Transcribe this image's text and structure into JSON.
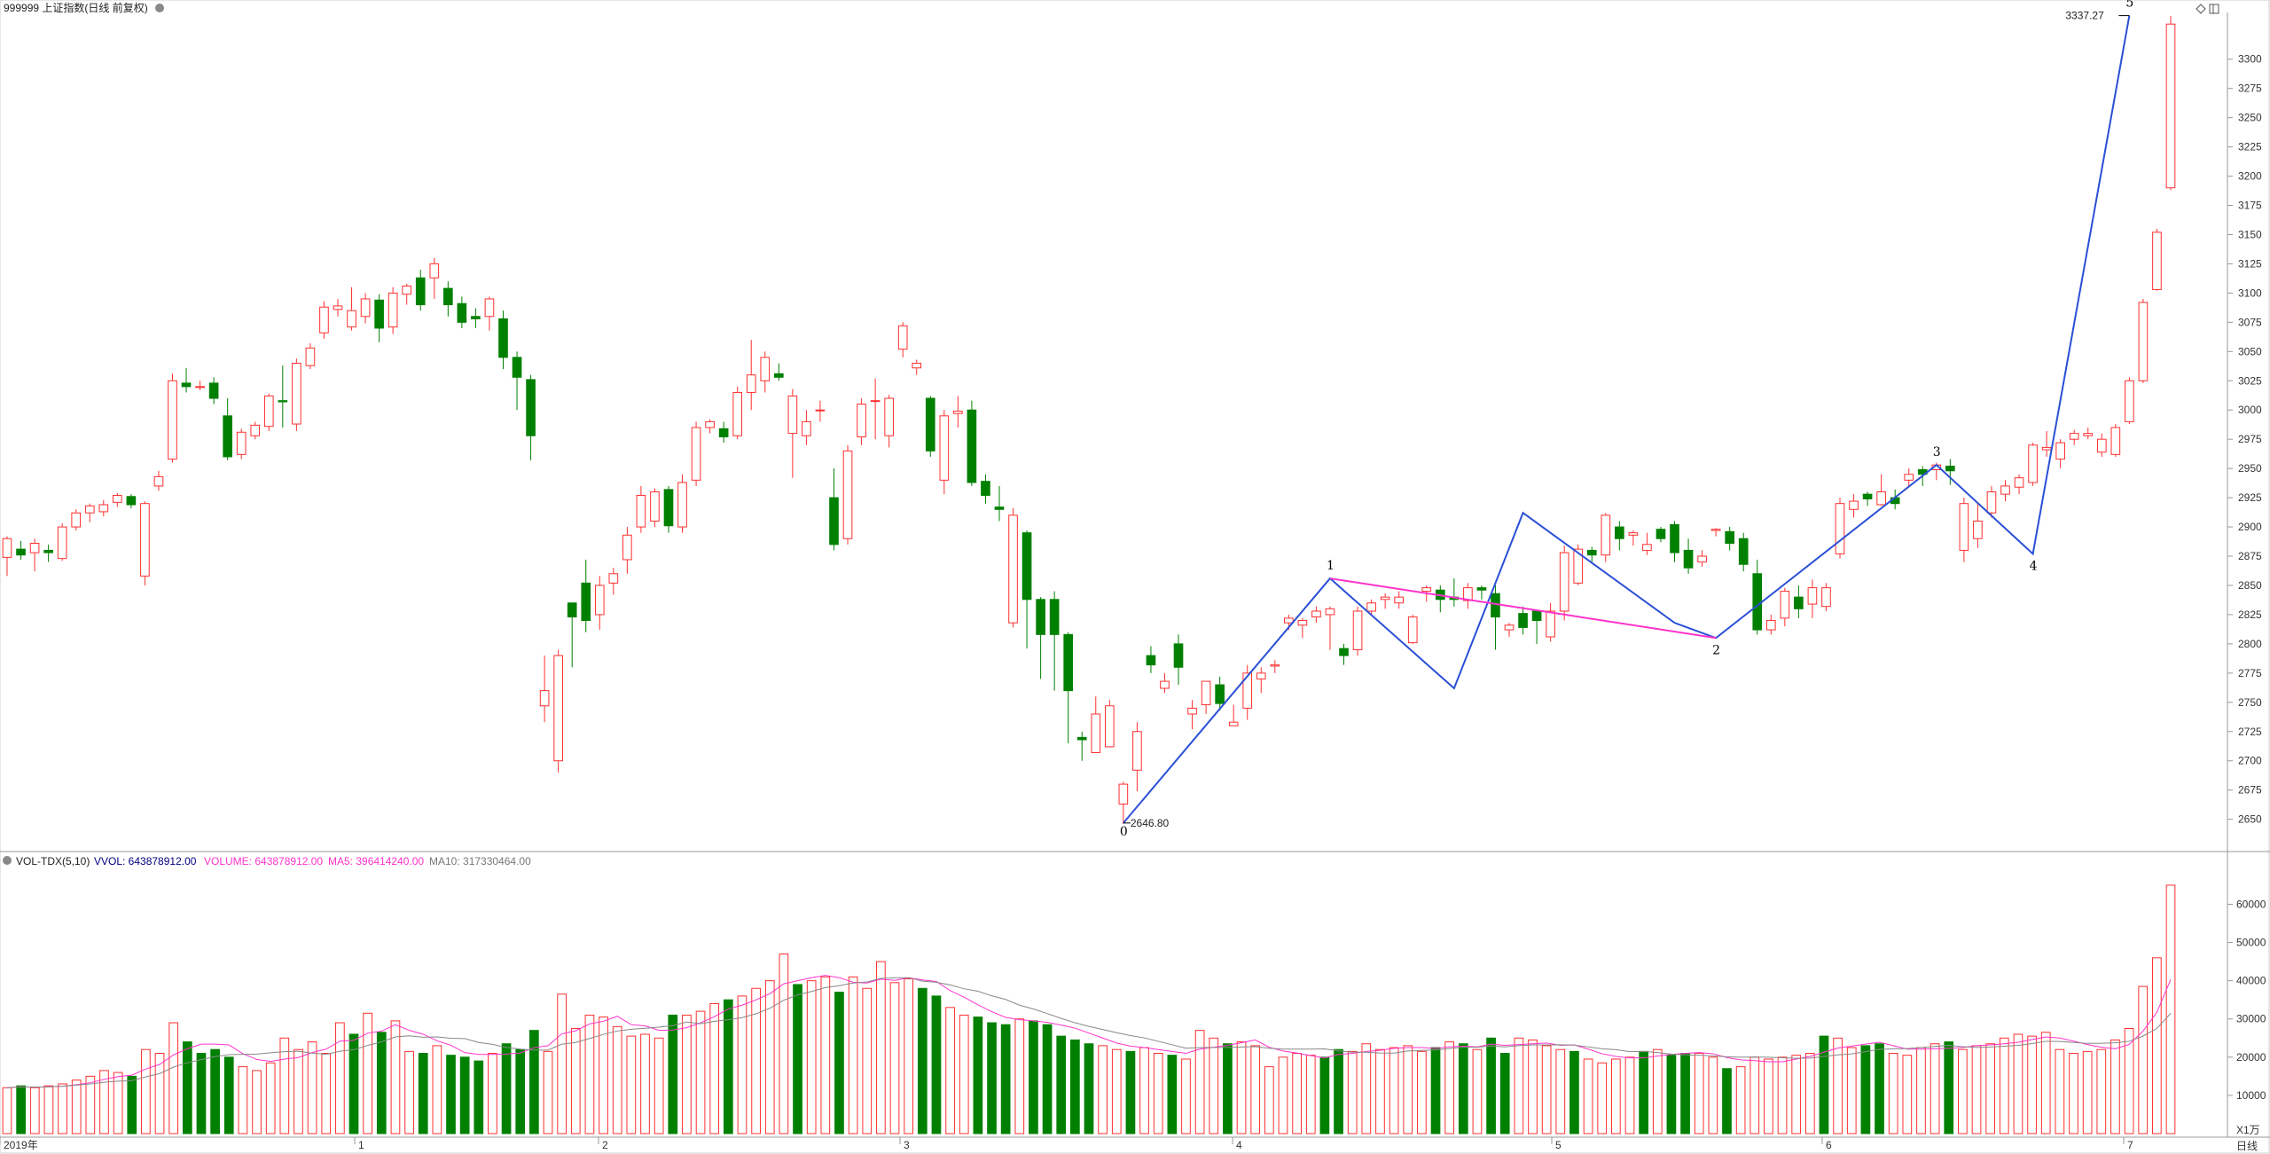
{
  "header": {
    "code_title": "999999 上证指数(日线 前复权)",
    "corner_icons": [
      "diamond-icon",
      "window-icon"
    ]
  },
  "price_axis": {
    "ticks": [
      "3300",
      "3275",
      "3250",
      "3225",
      "3200",
      "3175",
      "3150",
      "3125",
      "3100",
      "3075",
      "3050",
      "3025",
      "3000",
      "2975",
      "2950",
      "2925",
      "2900",
      "2875",
      "2850",
      "2825",
      "2800",
      "2775",
      "2750",
      "2725",
      "2700",
      "2675",
      "2650"
    ]
  },
  "volume_header": {
    "indicator": "VOL-TDX(5,10)",
    "vvol": "VVOL: 643878912.00",
    "volume": "VOLUME: 643878912.00",
    "ma5": "MA5: 396414240.00",
    "ma10": "MA10: 317330464.00"
  },
  "volume_axis": {
    "ticks": [
      "60000",
      "50000",
      "40000",
      "30000",
      "20000",
      "10000"
    ],
    "unit": "X1万"
  },
  "time_axis": {
    "labels": [
      "2019年",
      "1",
      "2",
      "3",
      "4",
      "5",
      "6",
      "7"
    ],
    "period": "日线"
  },
  "annotations": {
    "low_value": "2646.80",
    "high_value": "3337.27",
    "wave_labels": [
      "0",
      "1",
      "2",
      "3",
      "4",
      "5"
    ]
  },
  "colors": {
    "up": "#ff3030",
    "down": "#008000",
    "wave_line": "#2a4fd6",
    "trend_line": "#ff33cc",
    "ma5": "#ff33cc",
    "ma10": "#777777",
    "volume_text": "#ff33cc",
    "vvol_text": "#000080"
  },
  "chart_data": {
    "type": "candlestick",
    "x": [
      "2019-01",
      "2019-02",
      "2019-03",
      "2019-04",
      "2019-05",
      "2019-06",
      "2019-07"
    ],
    "candles": [
      [
        2874,
        2890,
        2858,
        2892
      ],
      [
        2881,
        2876,
        2872,
        2888
      ],
      [
        2878,
        2886,
        2862,
        2890
      ],
      [
        2880,
        2878,
        2870,
        2885
      ],
      [
        2873,
        2900,
        2871,
        2903
      ],
      [
        2900,
        2912,
        2897,
        2915
      ],
      [
        2912,
        2918,
        2904,
        2920
      ],
      [
        2913,
        2919,
        2909,
        2923
      ],
      [
        2921,
        2927,
        2917,
        2929
      ],
      [
        2926,
        2919,
        2916,
        2928
      ],
      [
        2858,
        2920,
        2850,
        2922
      ],
      [
        2935,
        2943,
        2931,
        2948
      ],
      [
        2958,
        3025,
        2955,
        3031
      ],
      [
        3023,
        3020,
        3015,
        3036
      ],
      [
        3020,
        3020,
        3017,
        3025
      ],
      [
        3023,
        3010,
        3005,
        3028
      ],
      [
        2995,
        2960,
        2957,
        3010
      ],
      [
        2962,
        2981,
        2958,
        2984
      ],
      [
        2978,
        2987,
        2975,
        2990
      ],
      [
        2986,
        3012,
        2982,
        3014
      ],
      [
        3008,
        3007,
        2985,
        3038
      ],
      [
        2988,
        3040,
        2982,
        3044
      ],
      [
        3038,
        3053,
        3035,
        3057
      ],
      [
        3066,
        3088,
        3061,
        3093
      ],
      [
        3086,
        3089,
        3080,
        3095
      ],
      [
        3071,
        3085,
        3068,
        3105
      ],
      [
        3080,
        3095,
        3074,
        3100
      ],
      [
        3094,
        3070,
        3058,
        3099
      ],
      [
        3071,
        3100,
        3065,
        3105
      ],
      [
        3099,
        3106,
        3090,
        3108
      ],
      [
        3113,
        3090,
        3085,
        3120
      ],
      [
        3113,
        3125,
        3095,
        3130
      ],
      [
        3104,
        3090,
        3080,
        3110
      ],
      [
        3091,
        3075,
        3070,
        3097
      ],
      [
        3080,
        3078,
        3070,
        3087
      ],
      [
        3080,
        3095,
        3068,
        3097
      ],
      [
        3078,
        3045,
        3035,
        3085
      ],
      [
        3045,
        3028,
        3000,
        3050
      ],
      [
        3026,
        2978,
        2957,
        3030
      ],
      [
        2747,
        2760,
        2733,
        2790
      ],
      [
        2700,
        2790,
        2690,
        2795
      ],
      [
        2835,
        2823,
        2780,
        2830
      ],
      [
        2852,
        2820,
        2810,
        2872
      ],
      [
        2825,
        2850,
        2812,
        2858
      ],
      [
        2852,
        2860,
        2842,
        2865
      ],
      [
        2872,
        2893,
        2860,
        2900
      ],
      [
        2900,
        2927,
        2895,
        2935
      ],
      [
        2905,
        2930,
        2900,
        2933
      ],
      [
        2932,
        2901,
        2895,
        2935
      ],
      [
        2900,
        2938,
        2895,
        2945
      ],
      [
        2940,
        2985,
        2935,
        2990
      ],
      [
        2985,
        2990,
        2980,
        2992
      ],
      [
        2984,
        2977,
        2972,
        2990
      ],
      [
        2978,
        3015,
        2975,
        3020
      ],
      [
        3015,
        3030,
        3000,
        3060
      ],
      [
        3025,
        3045,
        3015,
        3050
      ],
      [
        3031,
        3028,
        3025,
        3040
      ],
      [
        2980,
        3012,
        2942,
        3018
      ],
      [
        2978,
        2990,
        2970,
        3000
      ],
      [
        3000,
        3000,
        2990,
        3008
      ],
      [
        2925,
        2885,
        2880,
        2950
      ],
      [
        2890,
        2965,
        2885,
        2970
      ],
      [
        2977,
        3005,
        2970,
        3010
      ],
      [
        3008,
        3008,
        2975,
        3027
      ],
      [
        2978,
        3010,
        2968,
        3013
      ],
      [
        3052,
        3072,
        3045,
        3075
      ],
      [
        3036,
        3040,
        3030,
        3043
      ],
      [
        3010,
        2965,
        2960,
        3012
      ],
      [
        2940,
        2995,
        2928,
        3000
      ],
      [
        2997,
        2999,
        2985,
        3012
      ],
      [
        3000,
        2938,
        2935,
        3008
      ],
      [
        2939,
        2927,
        2920,
        2945
      ],
      [
        2917,
        2915,
        2905,
        2935
      ],
      [
        2818,
        2910,
        2814,
        2916
      ],
      [
        2895,
        2838,
        2796,
        2897
      ],
      [
        2838,
        2808,
        2770,
        2840
      ],
      [
        2838,
        2808,
        2760,
        2845
      ],
      [
        2808,
        2760,
        2715,
        2810
      ],
      [
        2720,
        2718,
        2700,
        2725
      ],
      [
        2707,
        2740,
        2708,
        2755
      ],
      [
        2712,
        2747,
        2715,
        2752
      ],
      [
        2663,
        2680,
        2646,
        2682
      ],
      [
        2692,
        2725,
        2674,
        2733
      ],
      [
        2790,
        2782,
        2775,
        2798
      ],
      [
        2762,
        2768,
        2758,
        2775
      ],
      [
        2800,
        2780,
        2765,
        2808
      ],
      [
        2740,
        2745,
        2727,
        2752
      ],
      [
        2748,
        2768,
        2740,
        2768
      ],
      [
        2765,
        2749,
        2743,
        2772
      ],
      [
        2730,
        2733,
        2732,
        2748
      ],
      [
        2745,
        2775,
        2735,
        2782
      ],
      [
        2770,
        2775,
        2758,
        2780
      ],
      [
        2781,
        2782,
        2775,
        2786
      ],
      [
        2818,
        2822,
        2812,
        2825
      ],
      [
        2816,
        2820,
        2805,
        2822
      ],
      [
        2823,
        2828,
        2818,
        2832
      ],
      [
        2825,
        2830,
        2795,
        2832
      ],
      [
        2796,
        2790,
        2782,
        2800
      ],
      [
        2795,
        2828,
        2790,
        2832
      ],
      [
        2828,
        2835,
        2825,
        2838
      ],
      [
        2838,
        2840,
        2830,
        2843
      ],
      [
        2835,
        2840,
        2830,
        2845
      ],
      [
        2801,
        2823,
        2800,
        2825
      ],
      [
        2845,
        2848,
        2836,
        2850
      ],
      [
        2846,
        2838,
        2827,
        2850
      ],
      [
        2840,
        2838,
        2832,
        2856
      ],
      [
        2837,
        2848,
        2830,
        2852
      ],
      [
        2848,
        2846,
        2838,
        2850
      ],
      [
        2843,
        2823,
        2795,
        2850
      ],
      [
        2812,
        2816,
        2806,
        2818
      ],
      [
        2826,
        2814,
        2808,
        2832
      ],
      [
        2828,
        2820,
        2800,
        2825
      ],
      [
        2806,
        2828,
        2802,
        2835
      ],
      [
        2828,
        2878,
        2820,
        2884
      ],
      [
        2852,
        2881,
        2850,
        2885
      ],
      [
        2880,
        2876,
        2870,
        2883
      ],
      [
        2876,
        2910,
        2870,
        2912
      ],
      [
        2900,
        2890,
        2880,
        2905
      ],
      [
        2893,
        2895,
        2884,
        2897
      ],
      [
        2880,
        2885,
        2876,
        2895
      ],
      [
        2898,
        2890,
        2887,
        2900
      ],
      [
        2902,
        2878,
        2870,
        2905
      ],
      [
        2880,
        2865,
        2860,
        2890
      ],
      [
        2870,
        2875,
        2866,
        2880
      ],
      [
        2897,
        2898,
        2892,
        2899
      ],
      [
        2896,
        2886,
        2880,
        2900
      ],
      [
        2890,
        2868,
        2862,
        2895
      ],
      [
        2860,
        2812,
        2808,
        2872
      ],
      [
        2812,
        2820,
        2808,
        2825
      ],
      [
        2822,
        2845,
        2815,
        2848
      ],
      [
        2840,
        2830,
        2822,
        2850
      ],
      [
        2834,
        2848,
        2822,
        2855
      ],
      [
        2832,
        2848,
        2828,
        2852
      ],
      [
        2877,
        2920,
        2873,
        2925
      ],
      [
        2915,
        2922,
        2908,
        2928
      ],
      [
        2928,
        2924,
        2918,
        2930
      ],
      [
        2919,
        2930,
        2918,
        2945
      ],
      [
        2925,
        2920,
        2915,
        2932
      ],
      [
        2940,
        2945,
        2935,
        2950
      ],
      [
        2949,
        2945,
        2935,
        2952
      ],
      [
        2949,
        2953,
        2940,
        2955
      ],
      [
        2952,
        2948,
        2936,
        2958
      ],
      [
        2880,
        2920,
        2870,
        2925
      ],
      [
        2890,
        2905,
        2882,
        2920
      ],
      [
        2912,
        2930,
        2908,
        2935
      ],
      [
        2928,
        2935,
        2922,
        2940
      ],
      [
        2934,
        2942,
        2928,
        2945
      ],
      [
        2938,
        2970,
        2935,
        2972
      ],
      [
        2966,
        2968,
        2960,
        2982
      ],
      [
        2958,
        2972,
        2950,
        2975
      ],
      [
        2975,
        2980,
        2970,
        2983
      ],
      [
        2978,
        2980,
        2975,
        2985
      ],
      [
        2964,
        2975,
        2960,
        2980
      ],
      [
        2962,
        2985,
        2960,
        2988
      ],
      [
        2990,
        3025,
        2988,
        3028
      ],
      [
        3025,
        3092,
        3023,
        3095
      ],
      [
        3103,
        3152,
        3102,
        3155
      ],
      [
        3190,
        3330,
        3188,
        3337
      ]
    ],
    "volume": {
      "values": [
        12000,
        12500,
        12000,
        12500,
        13000,
        14000,
        15000,
        16500,
        16000,
        15000,
        22000,
        21000,
        29000,
        24000,
        21000,
        22000,
        20000,
        17500,
        16500,
        18500,
        25000,
        22000,
        24000,
        21000,
        29000,
        26000,
        31500,
        26500,
        29500,
        21500,
        21000,
        23000,
        20500,
        20000,
        19000,
        21000,
        23500,
        22000,
        27000,
        21500,
        36500,
        27500,
        31000,
        30500,
        28000,
        25500,
        26000,
        25000,
        31000,
        31000,
        32000,
        34000,
        35000,
        36000,
        38000,
        40000,
        47000,
        39000,
        40000,
        41000,
        37000,
        41000,
        38000,
        45000,
        39500,
        40500,
        38000,
        36000,
        33000,
        31000,
        30500,
        29000,
        28500,
        30000,
        29500,
        28500,
        25500,
        24500,
        23500,
        23000,
        22000,
        21500,
        22500,
        21000,
        20500,
        19500,
        27000,
        25000,
        23500,
        24000,
        23000,
        17500,
        20000,
        21000,
        20500,
        20000,
        22000,
        21500,
        23500,
        22000,
        22500,
        23000,
        21500,
        22500,
        24000,
        23500,
        22000,
        25000,
        21000,
        25000,
        24500,
        23000,
        22000,
        21500,
        19500,
        18500,
        19500,
        20000,
        21500,
        22000,
        20500,
        21000,
        21000,
        20000,
        17000,
        17500,
        20000,
        19500,
        20000,
        20500,
        21000,
        25500,
        25000,
        22500,
        23000,
        23500,
        21000,
        20500,
        22500,
        23500,
        24000,
        22000,
        23000,
        23500,
        25000,
        26000,
        25500,
        26500,
        22000,
        21000,
        21500,
        22000,
        24500,
        27500,
        38500,
        46000,
        65000
      ],
      "down": [
        false,
        true,
        false,
        false,
        false,
        false,
        false,
        false,
        false,
        true,
        false,
        false,
        false,
        true,
        true,
        true,
        true,
        false,
        false,
        false,
        false,
        false,
        false,
        false,
        false,
        true,
        false,
        true,
        false,
        false,
        true,
        false,
        true,
        true,
        true,
        false,
        true,
        true,
        true,
        false,
        false,
        false,
        false,
        false,
        false,
        false,
        false,
        false,
        true,
        false,
        false,
        false,
        true,
        false,
        false,
        false,
        false,
        true,
        false,
        false,
        true,
        false,
        false,
        false,
        false,
        false,
        true,
        true,
        false,
        false,
        true,
        true,
        true,
        false,
        true,
        true,
        true,
        true,
        true,
        false,
        false,
        true,
        false,
        false,
        true,
        false,
        false,
        false,
        true,
        false,
        false,
        false,
        false,
        false,
        false,
        true,
        true,
        false,
        false,
        false,
        false,
        false,
        false,
        true,
        false,
        true,
        false,
        true,
        true,
        false,
        false,
        false,
        false,
        true,
        false,
        false,
        false,
        false,
        true,
        false,
        true,
        true,
        false,
        false,
        true,
        false,
        false,
        false,
        false,
        false,
        false,
        true,
        false,
        false,
        true,
        true,
        false,
        false,
        false,
        false,
        true,
        false,
        false,
        false,
        false,
        false,
        false,
        false,
        false,
        false,
        false,
        false,
        false,
        false,
        false,
        false,
        false
      ],
      "ma5_start": 13000,
      "ma10_start": 13500
    },
    "price_range": [
      2630,
      3340
    ],
    "volume_range": [
      0,
      68000
    ],
    "wave_points": [
      {
        "label": "0",
        "price": 2646.8
      },
      {
        "label": "1",
        "price": 2856
      },
      {
        "label": "2",
        "price": 2805
      },
      {
        "label": "3",
        "price": 2953
      },
      {
        "label": "4",
        "price": 2877
      },
      {
        "label": "5",
        "price": 3337.27
      }
    ],
    "legend": "none",
    "grid": false
  }
}
